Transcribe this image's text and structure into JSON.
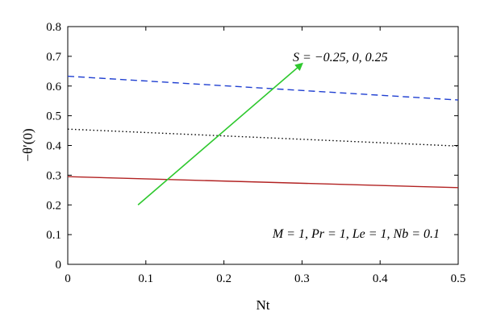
{
  "chart_data": {
    "type": "line",
    "title": "",
    "xlabel": "Nt",
    "ylabel": "−θ′(0)",
    "xlim": [
      0,
      0.5
    ],
    "ylim": [
      0,
      0.8
    ],
    "xticks": [
      "0",
      "0.1",
      "0.2",
      "0.3",
      "0.4",
      "0.5"
    ],
    "yticks": [
      "0",
      "0.1",
      "0.2",
      "0.3",
      "0.4",
      "0.5",
      "0.6",
      "0.7",
      "0.8"
    ],
    "grid": false,
    "series": [
      {
        "x": [
          0,
          0.5
        ],
        "y": [
          0.295,
          0.258
        ],
        "color": "#b22222",
        "style": "solid"
      },
      {
        "x": [
          0,
          0.5
        ],
        "y": [
          0.455,
          0.398
        ],
        "color": "#000000",
        "style": "dotted"
      },
      {
        "x": [
          0,
          0.5
        ],
        "y": [
          0.633,
          0.553
        ],
        "color": "#1f3fd1",
        "style": "dashed"
      }
    ],
    "arrow": {
      "from": [
        0.09,
        0.2
      ],
      "to": [
        0.3,
        0.675
      ],
      "color": "#2ec82e"
    },
    "annotations": {
      "arrow_label": "S = −0.25, 0, 0.25",
      "params": "M = 1, Pr = 1, Le = 1, Nb = 0.1"
    }
  }
}
